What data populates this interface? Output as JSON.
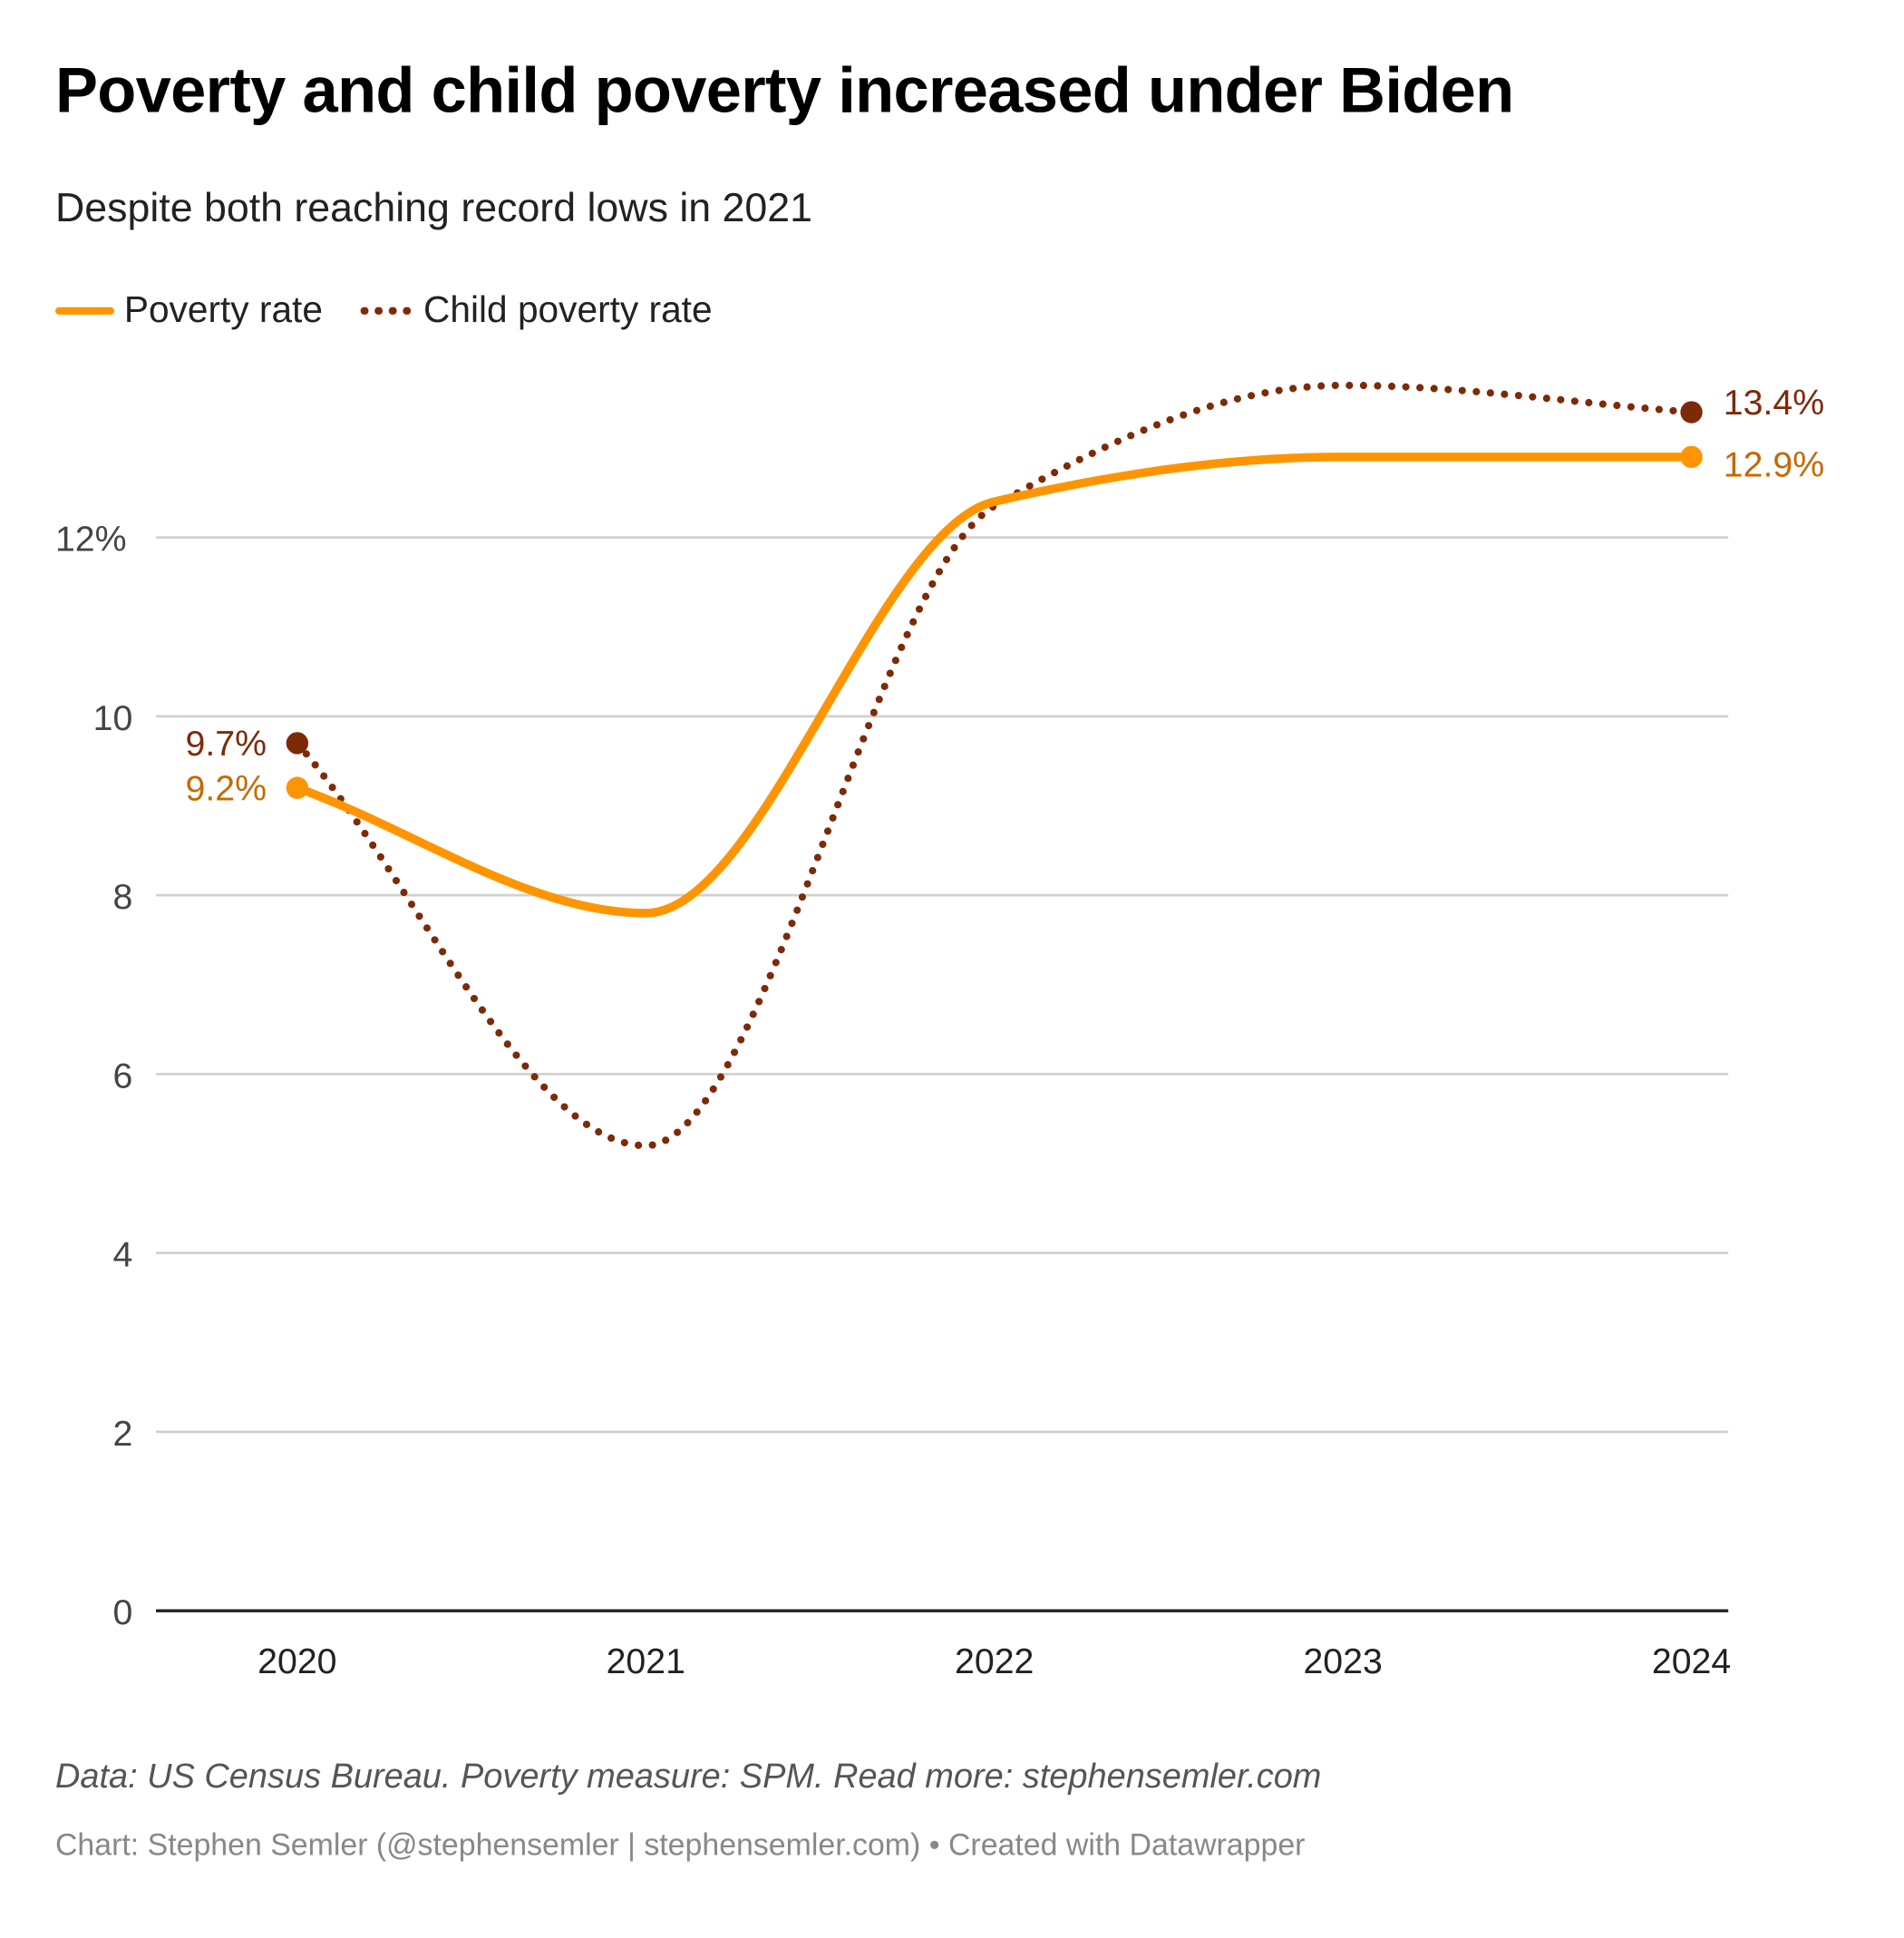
{
  "title": "Poverty and child poverty increased under Biden",
  "subtitle": "Despite both reaching record lows in 2021",
  "legend": {
    "poverty": "Poverty rate",
    "child": "Child poverty rate"
  },
  "notes": "Data: US Census Bureau. Poverty measure: SPM. Read more: stephensemler.com",
  "byline": "Chart: Stephen Semler (@stephensemler | stephensemler.com) • Created with Datawrapper",
  "chart_data": {
    "type": "line",
    "title": "Poverty and child poverty increased under Biden",
    "x": [
      "2020",
      "2021",
      "2022",
      "2023",
      "2024"
    ],
    "series": [
      {
        "name": "Poverty rate",
        "values": [
          9.2,
          7.8,
          12.4,
          12.9,
          12.9
        ],
        "color": "#fe9500",
        "style": "solid",
        "labels": {
          "first": "9.2%",
          "last": "12.9%"
        },
        "label_color": "#c46a00"
      },
      {
        "name": "Child poverty rate",
        "values": [
          9.7,
          5.2,
          12.35,
          13.7,
          13.4
        ],
        "color": "#7d2a08",
        "style": "dotted",
        "labels": {
          "first": "9.7%",
          "last": "13.4%"
        },
        "label_color": "#7d2a08"
      }
    ],
    "yticks": [
      0,
      2,
      4,
      6,
      8,
      10,
      12
    ],
    "ytick_labels": [
      "0",
      "2",
      "4",
      "6",
      "8",
      "10",
      "12%"
    ],
    "ylim": [
      0,
      13.7
    ],
    "grid": true,
    "legend_position": "top-left"
  }
}
